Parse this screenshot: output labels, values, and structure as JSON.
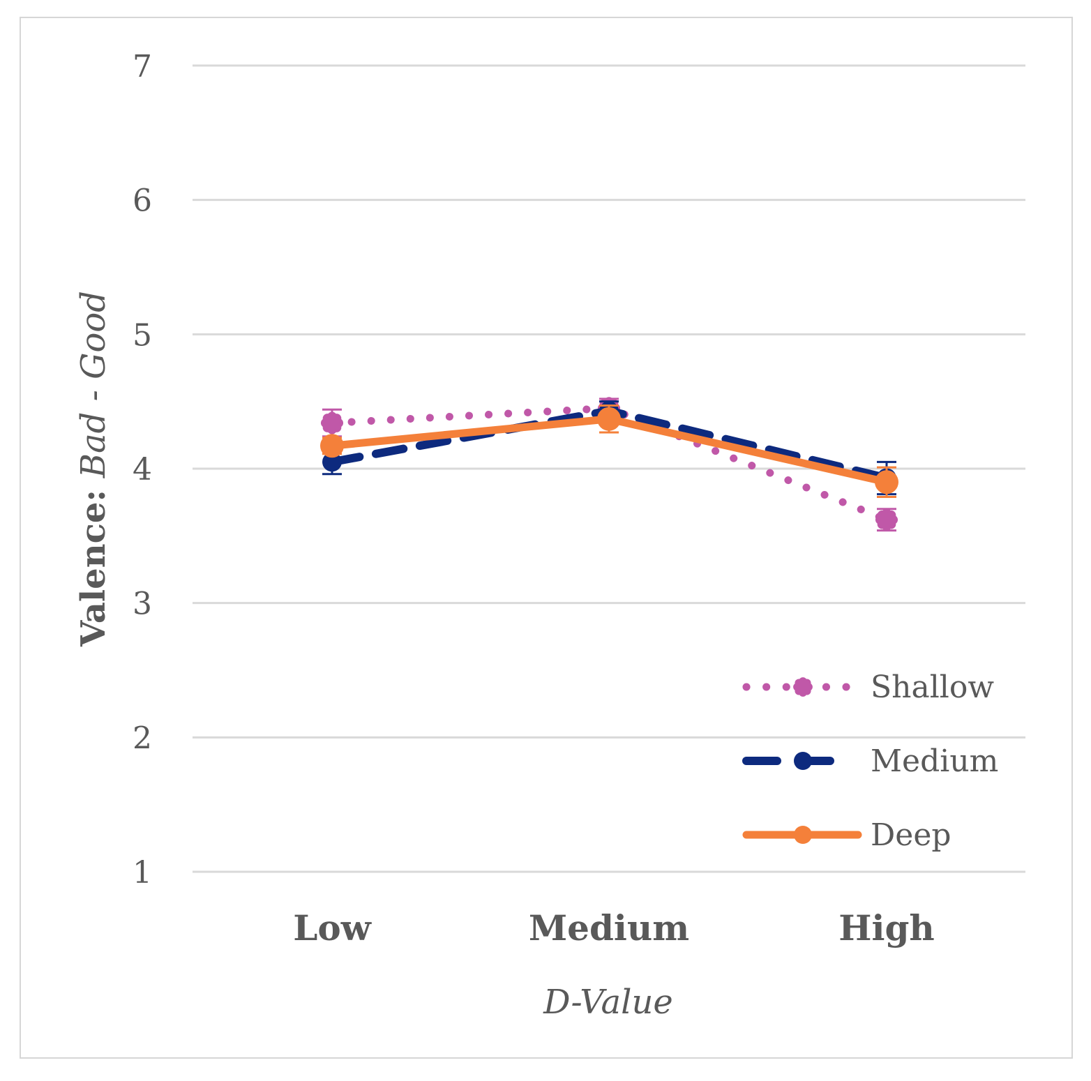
{
  "chart_data": {
    "type": "line",
    "title": "",
    "xlabel": "D-Value",
    "ylabel_prefix": "Valence: ",
    "ylabel_italic": "Bad - Good",
    "categories": [
      "Low",
      "Medium",
      "High"
    ],
    "ylim": [
      1,
      7
    ],
    "yticks": [
      "1",
      "2",
      "3",
      "4",
      "5",
      "6",
      "7"
    ],
    "grid": true,
    "legend_position": "bottom-right",
    "series": [
      {
        "name": "Shallow",
        "values": [
          4.34,
          4.45,
          3.62
        ],
        "errors": [
          0.1,
          0.07,
          0.08
        ],
        "color": "#c058a8",
        "style": "dotted"
      },
      {
        "name": "Medium",
        "values": [
          4.05,
          4.43,
          3.93
        ],
        "errors": [
          0.09,
          0.07,
          0.12
        ],
        "color": "#0d2a7e",
        "style": "dashed"
      },
      {
        "name": "Deep",
        "values": [
          4.17,
          4.37,
          3.9
        ],
        "errors": [
          0.06,
          0.1,
          0.11
        ],
        "color": "#f4803a",
        "style": "solid"
      }
    ]
  }
}
